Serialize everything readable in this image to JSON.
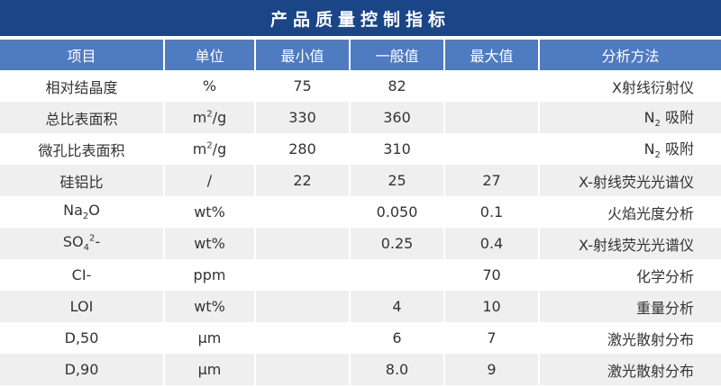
{
  "title": "产品质量控制指标",
  "colors": {
    "title_bg": "#1a4587",
    "header_bg": "#4f7bc0",
    "alt_row": "#efefef"
  },
  "columns": [
    "项目",
    "单位",
    "最小值",
    "一般值",
    "最大值",
    "分析方法"
  ],
  "rows": [
    [
      [
        {
          "t": "相对结晶度"
        }
      ],
      [
        {
          "t": "%"
        }
      ],
      [
        {
          "t": "75"
        }
      ],
      [
        {
          "t": "82"
        }
      ],
      [],
      [
        {
          "t": "X射线衍射仪"
        }
      ]
    ],
    [
      [
        {
          "t": "总比表面积"
        }
      ],
      [
        {
          "t": "m"
        },
        {
          "sup": "2"
        },
        {
          "t": "/g"
        }
      ],
      [
        {
          "t": "330"
        }
      ],
      [
        {
          "t": "360"
        }
      ],
      [],
      [
        {
          "t": "N"
        },
        {
          "sub": "2"
        },
        {
          "t": " 吸附"
        }
      ]
    ],
    [
      [
        {
          "t": "微孔比表面积"
        }
      ],
      [
        {
          "t": "m"
        },
        {
          "sup": "2"
        },
        {
          "t": "/g"
        }
      ],
      [
        {
          "t": "280"
        }
      ],
      [
        {
          "t": "310"
        }
      ],
      [],
      [
        {
          "t": "N"
        },
        {
          "sub": "2"
        },
        {
          "t": " 吸附"
        }
      ]
    ],
    [
      [
        {
          "t": "硅铝比"
        }
      ],
      [
        {
          "t": "/"
        }
      ],
      [
        {
          "t": "22"
        }
      ],
      [
        {
          "t": "25"
        }
      ],
      [
        {
          "t": "27"
        }
      ],
      [
        {
          "t": "X-射线荧光光谱仪"
        }
      ]
    ],
    [
      [
        {
          "t": "Na"
        },
        {
          "sub": "2"
        },
        {
          "t": "O"
        }
      ],
      [
        {
          "t": "wt%"
        }
      ],
      [],
      [
        {
          "t": "0.050"
        }
      ],
      [
        {
          "t": "0.1"
        }
      ],
      [
        {
          "t": "火焰光度分析"
        }
      ]
    ],
    [
      [
        {
          "t": "SO"
        },
        {
          "sub": "4"
        },
        {
          "sup": "2"
        },
        {
          "t": "-"
        }
      ],
      [
        {
          "t": "wt%"
        }
      ],
      [],
      [
        {
          "t": "0.25"
        }
      ],
      [
        {
          "t": "0.4"
        }
      ],
      [
        {
          "t": "X-射线荧光光谱仪"
        }
      ]
    ],
    [
      [
        {
          "t": "CI-"
        }
      ],
      [
        {
          "t": "ppm"
        }
      ],
      [],
      [],
      [
        {
          "t": "70"
        }
      ],
      [
        {
          "t": "化学分析"
        }
      ]
    ],
    [
      [
        {
          "t": "LOI"
        }
      ],
      [
        {
          "t": "wt%"
        }
      ],
      [],
      [
        {
          "t": "4"
        }
      ],
      [
        {
          "t": "10"
        }
      ],
      [
        {
          "t": "重量分析"
        }
      ]
    ],
    [
      [
        {
          "t": "D,50"
        }
      ],
      [
        {
          "t": "μm"
        }
      ],
      [],
      [
        {
          "t": "6"
        }
      ],
      [
        {
          "t": "7"
        }
      ],
      [
        {
          "t": "激光散射分布"
        }
      ]
    ],
    [
      [
        {
          "t": "D,90"
        }
      ],
      [
        {
          "t": "μm"
        }
      ],
      [],
      [
        {
          "t": "8.0"
        }
      ],
      [
        {
          "t": "9"
        }
      ],
      [
        {
          "t": "激光散射分布"
        }
      ]
    ]
  ]
}
